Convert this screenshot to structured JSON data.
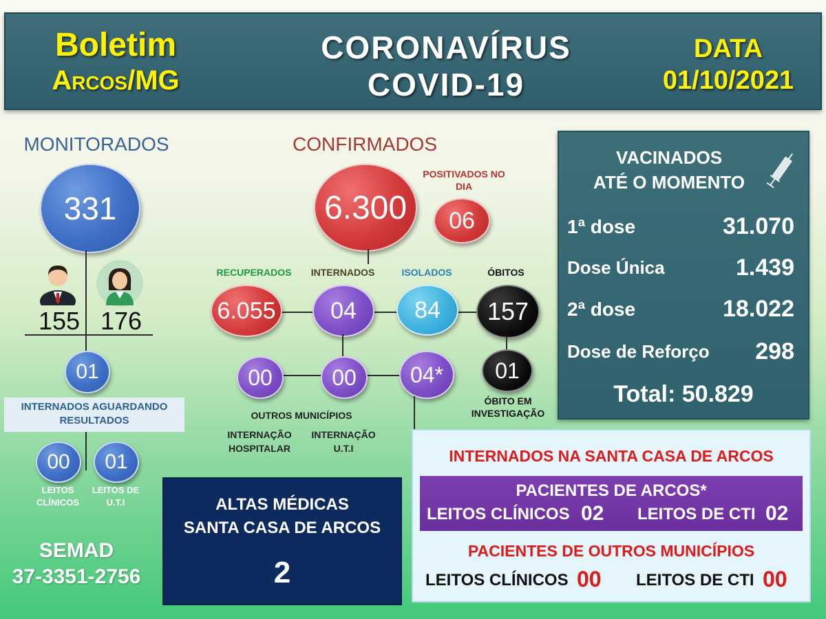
{
  "header": {
    "left_line1": "Boletim",
    "left_line2": "Arcos/MG",
    "center_line1": "CORONAVÍRUS",
    "center_line2": "COVID-19",
    "right_line1": "DATA",
    "right_line2": "01/10/2021"
  },
  "monitorados": {
    "title": "MONITORADOS",
    "total": "331",
    "male": "155",
    "female": "176",
    "aguardando": "01",
    "aguardando_label": "INTERNADOS AGUARDANDO RESULTADOS",
    "leitos_clinicos": "00",
    "leitos_uti": "01",
    "leitos_clinicos_label": "LEITOS CLÍNICOS",
    "leitos_uti_label": "LEITOS DE U.T.I"
  },
  "semad": {
    "name": "SEMAD",
    "phone": "37-3351-2756"
  },
  "confirmados": {
    "title": "CONFIRMADOS",
    "total": "6.300",
    "positivados_label": "POSITIVADOS NO DIA",
    "positivados": "06",
    "recuperados_label": "RECUPERADOS",
    "recuperados": "6.055",
    "internados_label": "INTERNADOS",
    "internados": "04",
    "isolados_label": "ISOLADOS",
    "isolados": "84",
    "obitos_label": "ÓBITOS",
    "obitos": "157",
    "obito_investigacao": "01",
    "obito_investigacao_label": "ÓBITO EM INVESTIGAÇÃO",
    "outros_municipios_label": "OUTROS MUNICÍPIOS",
    "outros_hospitalar": "00",
    "outros_uti": "00",
    "internados_star": "04*",
    "internacao_hospitalar_label": "INTERNAÇÃO HOSPITALAR",
    "internacao_uti_label": "INTERNAÇÃO U.T.I"
  },
  "vacinados": {
    "title_line1": "VACINADOS",
    "title_line2": "ATÉ O MOMENTO",
    "icon": "syringe-icon",
    "rows": [
      {
        "label": "1ª dose",
        "value": "31.070"
      },
      {
        "label": "Dose Única",
        "value": "1.439"
      },
      {
        "label": "2ª dose",
        "value": "18.022"
      },
      {
        "label": "Dose de Reforço",
        "value": "298"
      }
    ],
    "total": "Total: 50.829"
  },
  "altas": {
    "line1": "ALTAS MÉDICAS",
    "line2": "SANTA CASA DE ARCOS",
    "value": "2"
  },
  "santa_casa": {
    "title": "INTERNADOS NA SANTA CASA DE ARCOS",
    "arcos_title": "PACIENTES DE ARCOS*",
    "arcos_clinicos_label": "LEITOS CLÍNICOS",
    "arcos_clinicos": "02",
    "arcos_cti_label": "LEITOS DE CTI",
    "arcos_cti": "02",
    "outros_title": "PACIENTES DE OUTROS MUNICÍPIOS",
    "outros_clinicos_label": "LEITOS CLÍNICOS",
    "outros_clinicos": "00",
    "outros_cti_label": "LEITOS DE CTI",
    "outros_cti": "00"
  },
  "colors": {
    "header_bg": "#2f5f6c",
    "yellow": "#fff200",
    "red_text": "#e01919",
    "navy": "#0d2a5e",
    "purple_band": "#6a2f9d"
  }
}
